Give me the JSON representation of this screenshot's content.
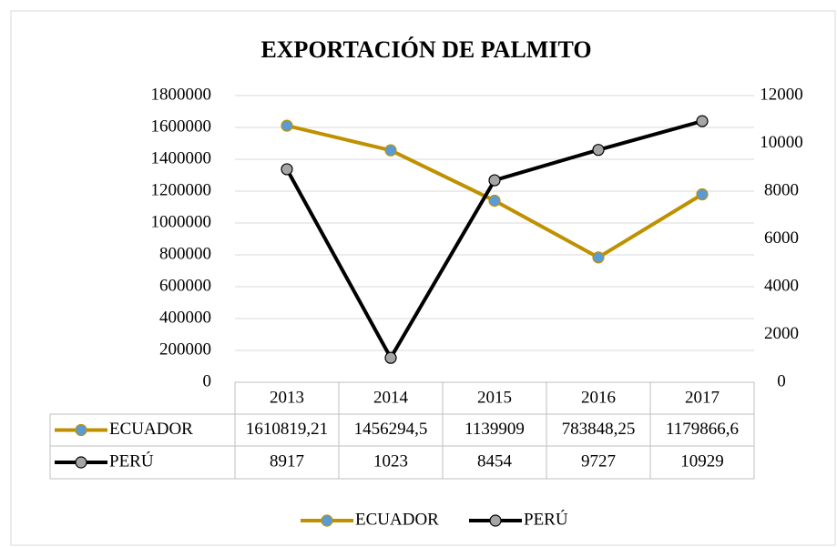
{
  "chart_data": {
    "type": "line",
    "title": "EXPORTACIÓN DE PALMITO",
    "categories": [
      "2013",
      "2014",
      "2015",
      "2016",
      "2017"
    ],
    "series": [
      {
        "name": "ECUADOR",
        "color": "#bf9000",
        "marker_color": "#5b9bd5",
        "values": [
          1610819.21,
          1456294.5,
          1139909,
          783848.25,
          1179866.6
        ],
        "value_labels": [
          "1610819,21",
          "1456294,5",
          "1139909",
          "783848,25",
          "1179866,6"
        ]
      },
      {
        "name": "PERÚ",
        "color": "#000000",
        "marker_color": "#a5a5a5",
        "axis": "y2",
        "values": [
          8917,
          1023,
          8454,
          9727,
          10929
        ]
      }
    ],
    "ylim": [
      0,
      1800000
    ],
    "yticks": [
      0,
      200000,
      400000,
      600000,
      800000,
      1000000,
      1200000,
      1400000,
      1600000,
      1800000
    ],
    "y2lim": [
      0,
      12000
    ],
    "y2ticks": [
      0,
      2000,
      4000,
      6000,
      8000,
      10000,
      12000
    ],
    "grid": true,
    "legend": "bottom"
  }
}
